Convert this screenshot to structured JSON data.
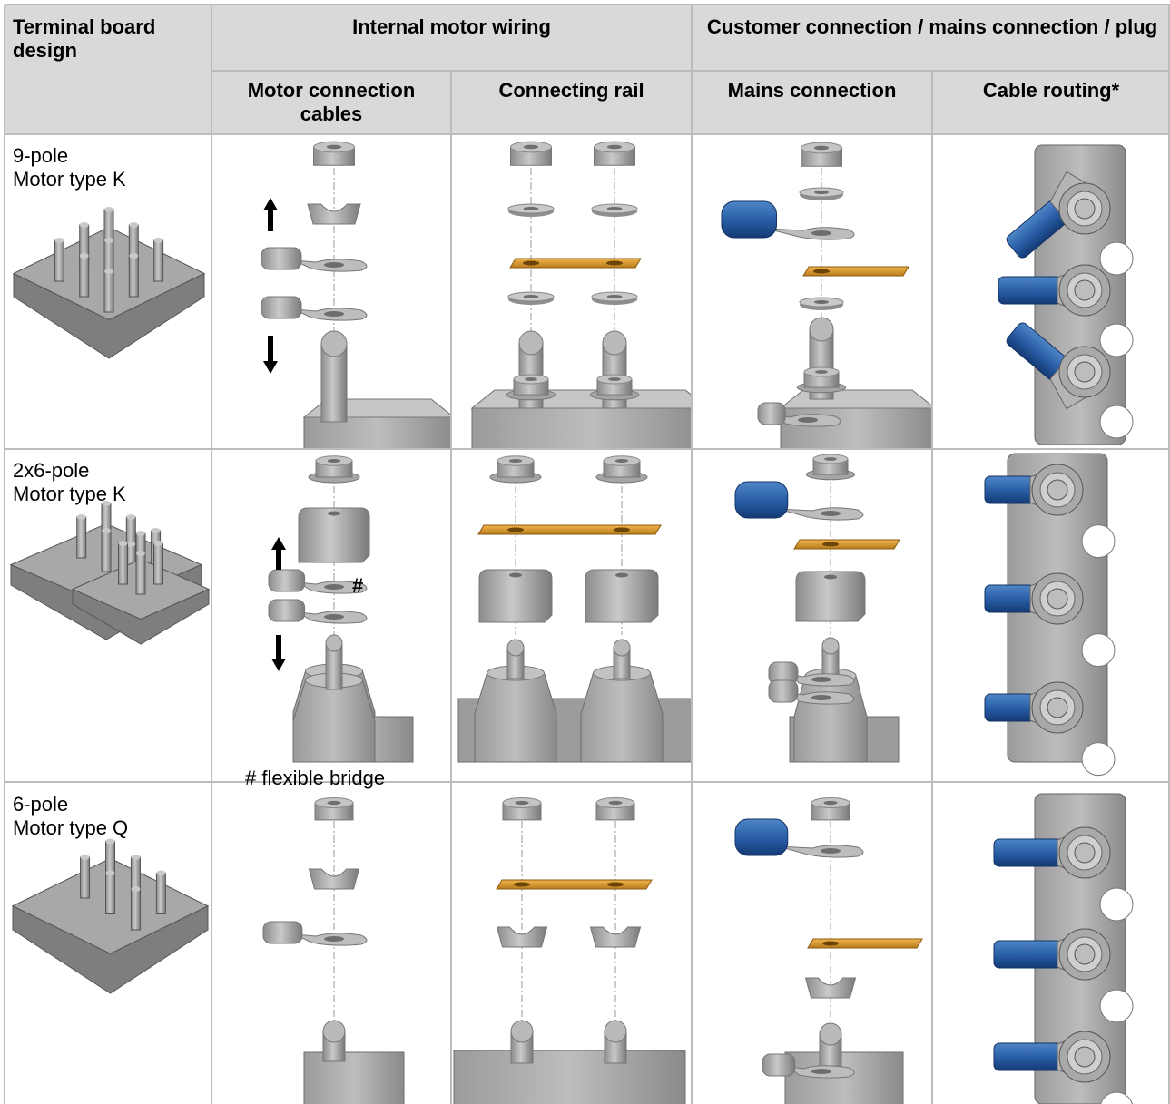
{
  "table": {
    "header": {
      "first_column": "Terminal board design",
      "groups": [
        "Internal motor wiring",
        "Customer connection / mains connec­tion / plug"
      ],
      "columns": [
        "Motor connection cables",
        "Connecting rail",
        "Mains connection",
        "Cable routing*"
      ]
    },
    "rows": [
      {
        "label": [
          "9-pole",
          "Motor type K"
        ]
      },
      {
        "label": [
          "2x6-pole",
          "Motor type K"
        ],
        "marker": "#",
        "note": "# flexible bridge"
      },
      {
        "label": [
          "6-pole",
          "Motor type Q"
        ]
      }
    ]
  }
}
